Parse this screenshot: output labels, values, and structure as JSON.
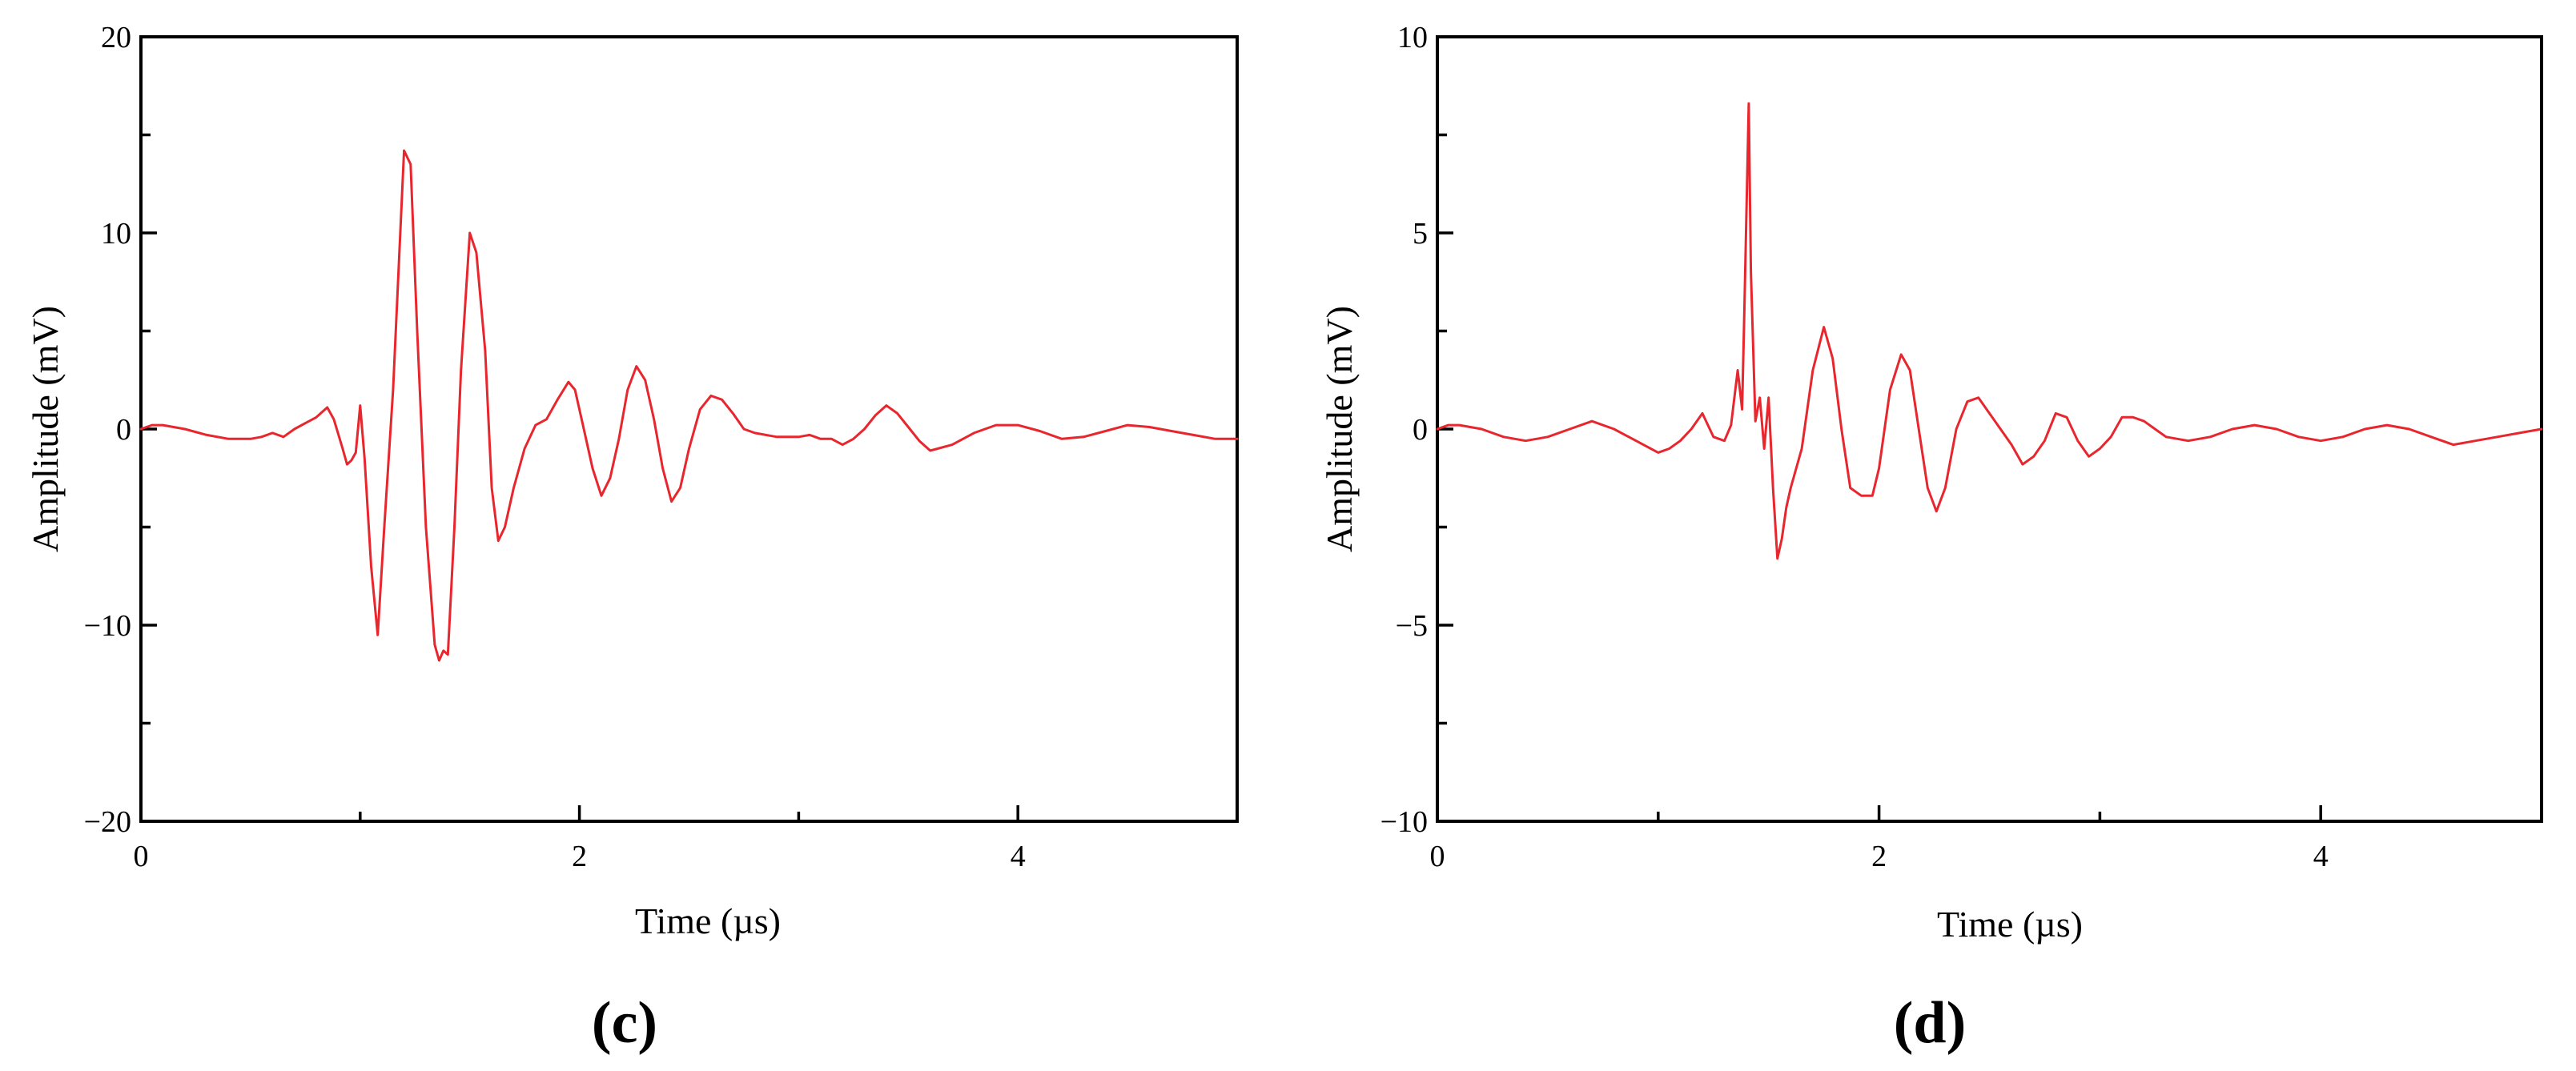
{
  "colors": {
    "series": "#e8262d",
    "axis": "#000000",
    "background": "#ffffff"
  },
  "chart_data": [
    {
      "type": "line",
      "panel_label": "(c)",
      "xlabel": "Time  (µs)",
      "ylabel": "Amplitude (mV)",
      "xlim": [
        0,
        5
      ],
      "ylim": [
        -20,
        20
      ],
      "x_major_ticks": [
        0,
        2,
        4
      ],
      "x_minor_ticks": [
        1,
        3
      ],
      "x_tick_labels": [
        "0",
        "2",
        "4"
      ],
      "y_ticks": [
        -20,
        -10,
        0,
        10,
        20
      ],
      "y_tick_labels": [
        "−20",
        "−10",
        "0",
        "10",
        "20"
      ],
      "y_minor_ticks": [
        -15,
        -5,
        5,
        15
      ],
      "grid": false,
      "series": [
        {
          "color": "#e8262d",
          "x": [
            0,
            0.05,
            0.1,
            0.2,
            0.3,
            0.4,
            0.5,
            0.55,
            0.6,
            0.65,
            0.7,
            0.75,
            0.8,
            0.85,
            0.88,
            0.92,
            0.94,
            0.96,
            0.98,
            1.0,
            1.02,
            1.05,
            1.08,
            1.11,
            1.15,
            1.2,
            1.23,
            1.26,
            1.3,
            1.34,
            1.36,
            1.38,
            1.4,
            1.43,
            1.46,
            1.5,
            1.53,
            1.57,
            1.6,
            1.63,
            1.66,
            1.7,
            1.75,
            1.8,
            1.85,
            1.9,
            1.95,
            1.98,
            2.02,
            2.06,
            2.1,
            2.14,
            2.18,
            2.22,
            2.26,
            2.3,
            2.34,
            2.38,
            2.42,
            2.46,
            2.5,
            2.55,
            2.6,
            2.65,
            2.7,
            2.75,
            2.8,
            2.9,
            3.0,
            3.05,
            3.1,
            3.15,
            3.2,
            3.25,
            3.3,
            3.35,
            3.4,
            3.45,
            3.5,
            3.55,
            3.6,
            3.7,
            3.8,
            3.9,
            4.0,
            4.1,
            4.2,
            4.3,
            4.4,
            4.5,
            4.6,
            4.7,
            4.8,
            4.9,
            5.0
          ],
          "y": [
            0,
            0.2,
            0.2,
            0,
            -0.3,
            -0.5,
            -0.5,
            -0.4,
            -0.2,
            -0.4,
            0,
            0.3,
            0.6,
            1.1,
            0.5,
            -1.0,
            -1.8,
            -1.6,
            -1.2,
            1.2,
            -1.5,
            -7.0,
            -10.5,
            -5.0,
            2.0,
            14.2,
            13.5,
            5.0,
            -5.0,
            -11.0,
            -11.8,
            -11.3,
            -11.5,
            -5.0,
            3.0,
            10.0,
            9.0,
            4.0,
            -3.0,
            -5.7,
            -5.0,
            -3.0,
            -1.0,
            0.2,
            0.5,
            1.5,
            2.4,
            2.0,
            0,
            -2.0,
            -3.4,
            -2.5,
            -0.5,
            2.0,
            3.2,
            2.5,
            0.5,
            -2.0,
            -3.7,
            -3.0,
            -1.0,
            1.0,
            1.7,
            1.5,
            0.8,
            0,
            -0.2,
            -0.4,
            -0.4,
            -0.3,
            -0.5,
            -0.5,
            -0.8,
            -0.5,
            0,
            0.7,
            1.2,
            0.8,
            0.1,
            -0.6,
            -1.1,
            -0.8,
            -0.2,
            0.2,
            0.2,
            -0.1,
            -0.5,
            -0.4,
            -0.1,
            0.2,
            0.1,
            -0.1,
            -0.3,
            -0.5,
            -0.5
          ]
        }
      ]
    },
    {
      "type": "line",
      "panel_label": "(d)",
      "xlabel": "Time (µs)",
      "ylabel": "Amplitude (mV)",
      "xlim": [
        0,
        5
      ],
      "ylim": [
        -10,
        10
      ],
      "x_major_ticks": [
        0,
        2,
        4
      ],
      "x_minor_ticks": [
        1,
        3
      ],
      "x_tick_labels": [
        "0",
        "2",
        "4"
      ],
      "y_ticks": [
        -10,
        -5,
        0,
        5,
        10
      ],
      "y_tick_labels": [
        "−10",
        "−5",
        "0",
        "5",
        "10"
      ],
      "y_minor_ticks": [
        -7.5,
        -2.5,
        2.5,
        7.5
      ],
      "grid": false,
      "series": [
        {
          "color": "#e8262d",
          "x": [
            0,
            0.05,
            0.1,
            0.2,
            0.3,
            0.4,
            0.5,
            0.6,
            0.7,
            0.8,
            0.9,
            1.0,
            1.05,
            1.1,
            1.15,
            1.2,
            1.25,
            1.3,
            1.33,
            1.36,
            1.38,
            1.39,
            1.41,
            1.42,
            1.44,
            1.46,
            1.48,
            1.5,
            1.52,
            1.54,
            1.56,
            1.58,
            1.6,
            1.65,
            1.7,
            1.75,
            1.79,
            1.83,
            1.87,
            1.92,
            1.97,
            2.0,
            2.05,
            2.1,
            2.14,
            2.18,
            2.22,
            2.26,
            2.3,
            2.35,
            2.4,
            2.45,
            2.5,
            2.55,
            2.6,
            2.65,
            2.7,
            2.75,
            2.8,
            2.85,
            2.9,
            2.95,
            3.0,
            3.05,
            3.1,
            3.15,
            3.2,
            3.25,
            3.3,
            3.4,
            3.5,
            3.6,
            3.7,
            3.8,
            3.9,
            4.0,
            4.1,
            4.2,
            4.3,
            4.4,
            4.5,
            4.6,
            4.7,
            4.8,
            4.9,
            5.0
          ],
          "y": [
            0,
            0.1,
            0.1,
            0,
            -0.2,
            -0.3,
            -0.2,
            0,
            0.2,
            0,
            -0.3,
            -0.6,
            -0.5,
            -0.3,
            0,
            0.4,
            -0.2,
            -0.3,
            0.1,
            1.5,
            0.5,
            3.0,
            8.3,
            4.0,
            0.2,
            0.8,
            -0.5,
            0.8,
            -1.5,
            -3.3,
            -2.8,
            -2.0,
            -1.5,
            -0.5,
            1.5,
            2.6,
            1.8,
            0,
            -1.5,
            -1.7,
            -1.7,
            -1.0,
            1.0,
            1.9,
            1.5,
            0,
            -1.5,
            -2.1,
            -1.5,
            0,
            0.7,
            0.8,
            0.4,
            0,
            -0.4,
            -0.9,
            -0.7,
            -0.3,
            0.4,
            0.3,
            -0.3,
            -0.7,
            -0.5,
            -0.2,
            0.3,
            0.3,
            0.2,
            0,
            -0.2,
            -0.3,
            -0.2,
            0,
            0.1,
            0,
            -0.2,
            -0.3,
            -0.2,
            0,
            0.1,
            0,
            -0.2,
            -0.4,
            -0.3,
            -0.2,
            -0.1,
            0
          ]
        }
      ]
    }
  ]
}
